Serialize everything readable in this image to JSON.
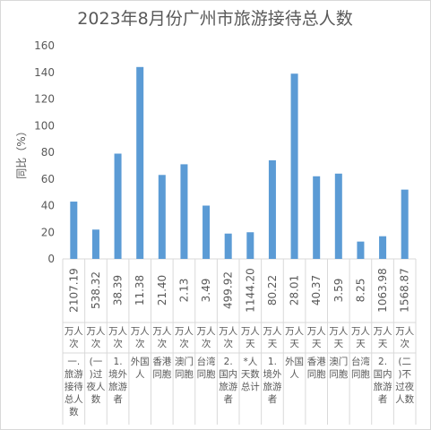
{
  "chart_data": {
    "type": "bar",
    "title": "2023年8月份广州市旅游接待总人数",
    "ylabel": "同比（%）",
    "xlabel": "",
    "ylim": [
      0,
      160
    ],
    "yticks": [
      0,
      20,
      40,
      60,
      80,
      100,
      120,
      140,
      160
    ],
    "grid": false,
    "legend": "none",
    "bar_color": "#5b9bd5",
    "categories": [
      {
        "value_label": "2107.19",
        "unit": "万人次",
        "name": "一.旅游接待总人数"
      },
      {
        "value_label": "538.32",
        "unit": "万人次",
        "name": "(一)过夜人数"
      },
      {
        "value_label": "38.39",
        "unit": "万人次",
        "name": "1.境外旅游者"
      },
      {
        "value_label": "11.38",
        "unit": "万人次",
        "name": "外国人"
      },
      {
        "value_label": "21.40",
        "unit": "万人次",
        "name": "香港同胞"
      },
      {
        "value_label": "2.13",
        "unit": "万人次",
        "name": "澳门同胞"
      },
      {
        "value_label": "3.49",
        "unit": "万人次",
        "name": "台湾同胞"
      },
      {
        "value_label": "499.92",
        "unit": "万人次",
        "name": "2.国内旅游者"
      },
      {
        "value_label": "1144.20",
        "unit": "万人天",
        "name": "*人天数总计"
      },
      {
        "value_label": "80.22",
        "unit": "万人天",
        "name": "1.境外旅游者"
      },
      {
        "value_label": "28.01",
        "unit": "万人天",
        "name": "外国人"
      },
      {
        "value_label": "40.37",
        "unit": "万人天",
        "name": "香港同胞"
      },
      {
        "value_label": "3.59",
        "unit": "万人天",
        "name": "澳门同胞"
      },
      {
        "value_label": "8.25",
        "unit": "万人天",
        "name": "台湾同胞"
      },
      {
        "value_label": "1063.98",
        "unit": "万人天",
        "name": "2.国内旅游者"
      },
      {
        "value_label": "1568.87",
        "unit": "万人次",
        "name": "(二)不过夜人数"
      }
    ],
    "series": [
      {
        "values": [
          43,
          22,
          79,
          144,
          63,
          71,
          40,
          19,
          20,
          74,
          139,
          62,
          64,
          13,
          17,
          52
        ]
      }
    ]
  }
}
